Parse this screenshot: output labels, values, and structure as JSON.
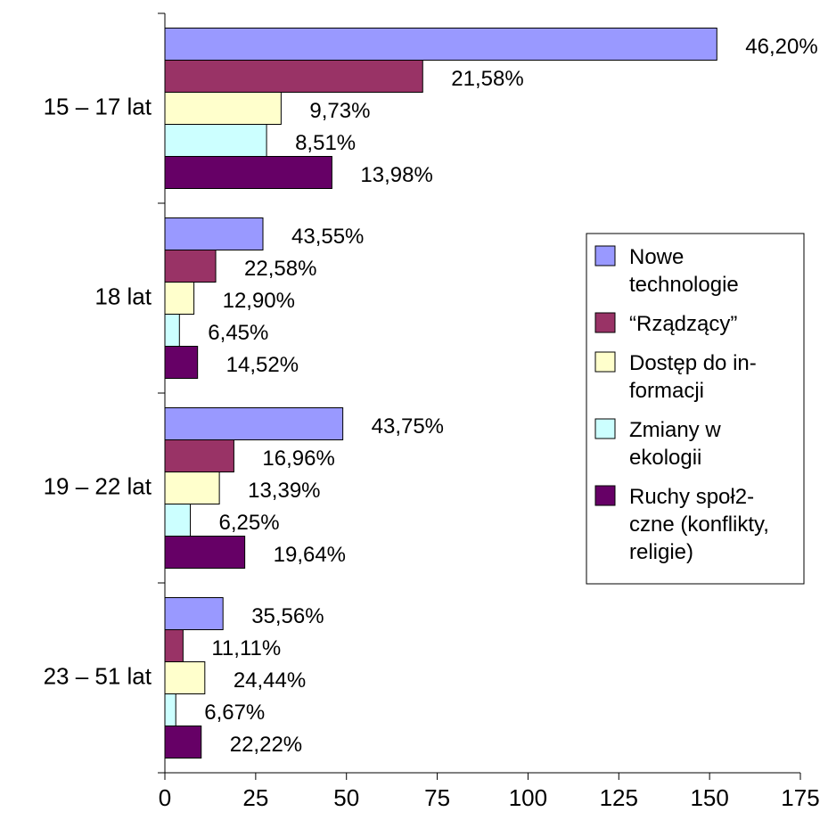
{
  "chart_data": {
    "type": "bar",
    "orientation": "horizontal",
    "categories": [
      "15 – 17 lat",
      "18 lat",
      "19 – 22 lat",
      "23 – 51 lat"
    ],
    "series": [
      {
        "name": "Nowe\ntechnologie",
        "color": "#9999ff",
        "values": [
          152,
          27,
          49,
          16
        ],
        "labels": [
          "46,20%",
          "43,55%",
          "43,75%",
          "35,56%"
        ]
      },
      {
        "name": "“Rządzący”",
        "color": "#993366",
        "values": [
          71,
          14,
          19,
          5
        ],
        "labels": [
          "21,58%",
          "22,58%",
          "16,96%",
          "11,11%"
        ]
      },
      {
        "name": "Dostęp do in-\nformacji",
        "color": "#ffffcc",
        "values": [
          32,
          8,
          15,
          11
        ],
        "labels": [
          "9,73%",
          "12,90%",
          "13,39%",
          "24,44%"
        ]
      },
      {
        "name": "Zmiany w\nekologii",
        "color": "#ccffff",
        "values": [
          28,
          4,
          7,
          3
        ],
        "labels": [
          "8,51%",
          "6,45%",
          "6,25%",
          "6,67%"
        ]
      },
      {
        "name": "Ruchy społ2-\nczne (konflikty,\nreligie)",
        "color": "#660066",
        "values": [
          46,
          9,
          22,
          10
        ],
        "labels": [
          "13,98%",
          "14,52%",
          "19,64%",
          "22,22%"
        ]
      }
    ],
    "xlim": [
      0,
      175
    ],
    "xticks": [
      0,
      25,
      50,
      75,
      100,
      125,
      150,
      175
    ],
    "grid": false,
    "legend": "right"
  }
}
